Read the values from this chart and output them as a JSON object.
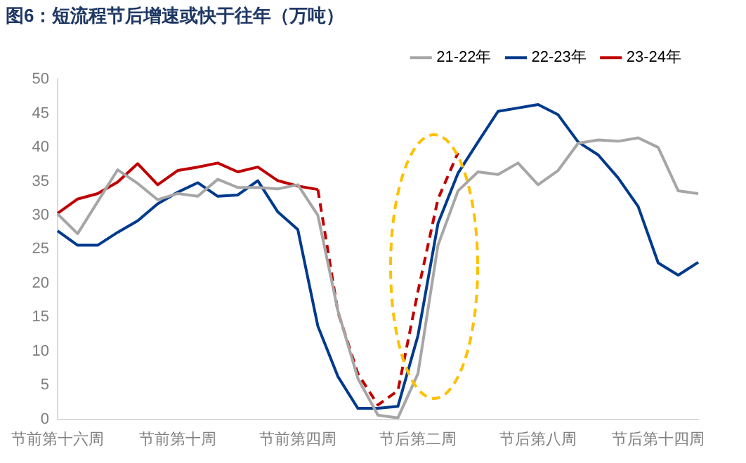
{
  "chart_data": {
    "type": "line",
    "title": "图6：短流程节后增速或快于往年（万吨）",
    "categories": [
      "节前第十六周",
      null,
      null,
      null,
      null,
      null,
      "节前第十周",
      null,
      null,
      null,
      null,
      null,
      "节前第四周",
      null,
      null,
      null,
      null,
      null,
      "节后第二周",
      null,
      null,
      null,
      null,
      null,
      "节后第八周",
      null,
      null,
      null,
      null,
      null,
      "节后第十四周",
      null,
      null
    ],
    "series": [
      {
        "name": "21-22年",
        "color": "#a6a6a6",
        "values": [
          30.2,
          27.3,
          32,
          36.7,
          34.7,
          32.3,
          33.2,
          32.8,
          35.3,
          34.1,
          34.1,
          33.9,
          34.5,
          30,
          16,
          6,
          0.6,
          0.2,
          6.7,
          25.6,
          33.6,
          36.4,
          36,
          37.7,
          34.5,
          36.6,
          40.6,
          41.1,
          40.9,
          41.4,
          40,
          33.6,
          33.2
        ]
      },
      {
        "name": "22-23年",
        "color": "#003a8c",
        "values": [
          27.7,
          25.6,
          25.6,
          27.5,
          29.2,
          31.7,
          33.4,
          34.8,
          32.8,
          33,
          35.1,
          30.5,
          27.9,
          13.7,
          6.3,
          1.6,
          1.6,
          1.9,
          12.3,
          28.8,
          36.2,
          40.8,
          45.3,
          45.8,
          46.3,
          44.8,
          40.8,
          38.9,
          35.5,
          31.3,
          23,
          21.2,
          23.1
        ]
      },
      {
        "name": "23-24年",
        "color": "#c00000",
        "values": [
          30.3,
          32.4,
          33.2,
          34.9,
          37.6,
          34.5,
          36.6,
          37.1,
          37.7,
          36.4,
          37.1,
          35.1,
          34.3,
          33.8,
          null,
          null,
          null,
          null,
          null,
          null,
          null,
          null,
          null,
          null,
          null,
          null,
          null,
          null,
          null,
          null,
          null,
          null,
          null
        ]
      },
      {
        "color": "#c00000",
        "line_style": "dashed",
        "values": [
          null,
          null,
          null,
          null,
          null,
          null,
          null,
          null,
          null,
          null,
          null,
          null,
          null,
          33.8,
          15.8,
          6.7,
          2.1,
          4.2,
          18.8,
          32.4,
          39.2,
          null,
          null,
          null,
          null,
          null,
          null,
          null,
          null,
          null,
          null,
          null,
          null
        ]
      }
    ],
    "ylim": [
      0,
      50
    ],
    "yticks": [
      0,
      5,
      10,
      15,
      20,
      25,
      30,
      35,
      40,
      45,
      50
    ],
    "grid": false,
    "legend": "top",
    "marker": "none",
    "line_style": "solid"
  }
}
